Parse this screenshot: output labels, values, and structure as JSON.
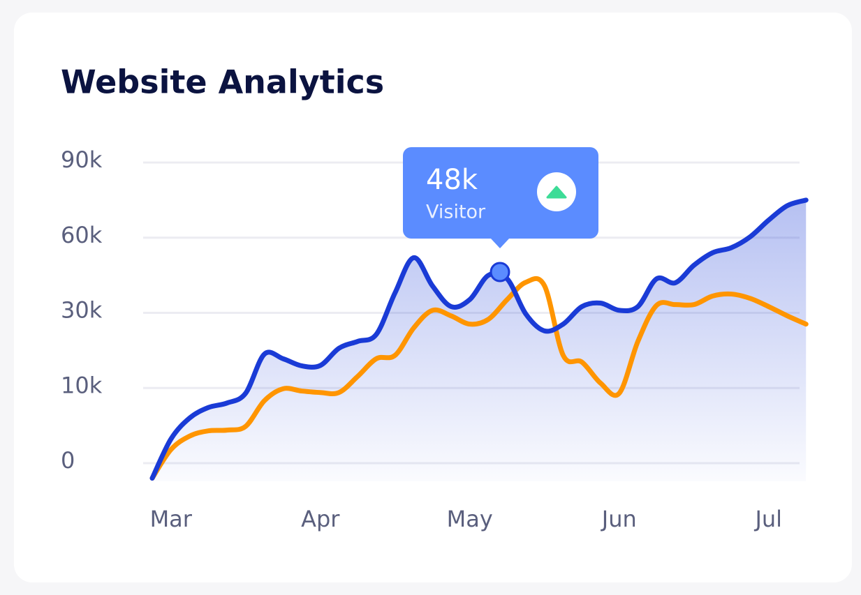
{
  "chart_data": {
    "type": "line",
    "title": "Website Analytics",
    "categories": [
      null,
      "Mar",
      null,
      null,
      null,
      null,
      null,
      null,
      null,
      "Apr",
      null,
      null,
      null,
      null,
      null,
      null,
      null,
      "May",
      null,
      null,
      null,
      null,
      null,
      null,
      null,
      "Jun",
      null,
      null,
      null,
      null,
      null,
      null,
      null,
      "Jul",
      null,
      null
    ],
    "series": [
      {
        "color": "#1a3bd6",
        "values": [
          -2,
          3.2,
          6,
          7.4,
          8,
          9.3,
          19,
          17.8,
          15.9,
          16,
          20.6,
          22.4,
          24.3,
          38,
          52,
          40.8,
          32.5,
          35.3,
          45,
          43.6,
          29.7,
          25.2,
          27,
          32.5,
          33.9,
          31,
          32.5,
          43.6,
          42,
          49,
          54,
          56,
          60.3,
          67,
          72.8,
          75
        ]
      },
      {
        "color": "#ff9500",
        "values": [
          -2,
          1.8,
          3.6,
          4.3,
          4.4,
          4.9,
          8.3,
          9.9,
          9.6,
          9.4,
          9.4,
          13.1,
          17.8,
          18.7,
          26,
          31,
          29.2,
          27,
          28.3,
          35.3,
          42.2,
          40.8,
          18.7,
          16.9,
          11.3,
          9.3,
          22.4,
          33,
          33.3,
          33.3,
          36.7,
          37.5,
          35.8,
          32.5,
          29.2,
          27
        ]
      }
    ],
    "yticks": [
      0,
      {
        "value": 10,
        "label": "10k"
      },
      {
        "value": 30,
        "label": "30k"
      },
      {
        "value": 60,
        "label": "60k"
      },
      {
        "value": 90,
        "label": "90k"
      }
    ],
    "ylim": [
      -2,
      90
    ],
    "grid": true,
    "tooltip": {
      "value": "48k",
      "label": "Visitor"
    }
  }
}
